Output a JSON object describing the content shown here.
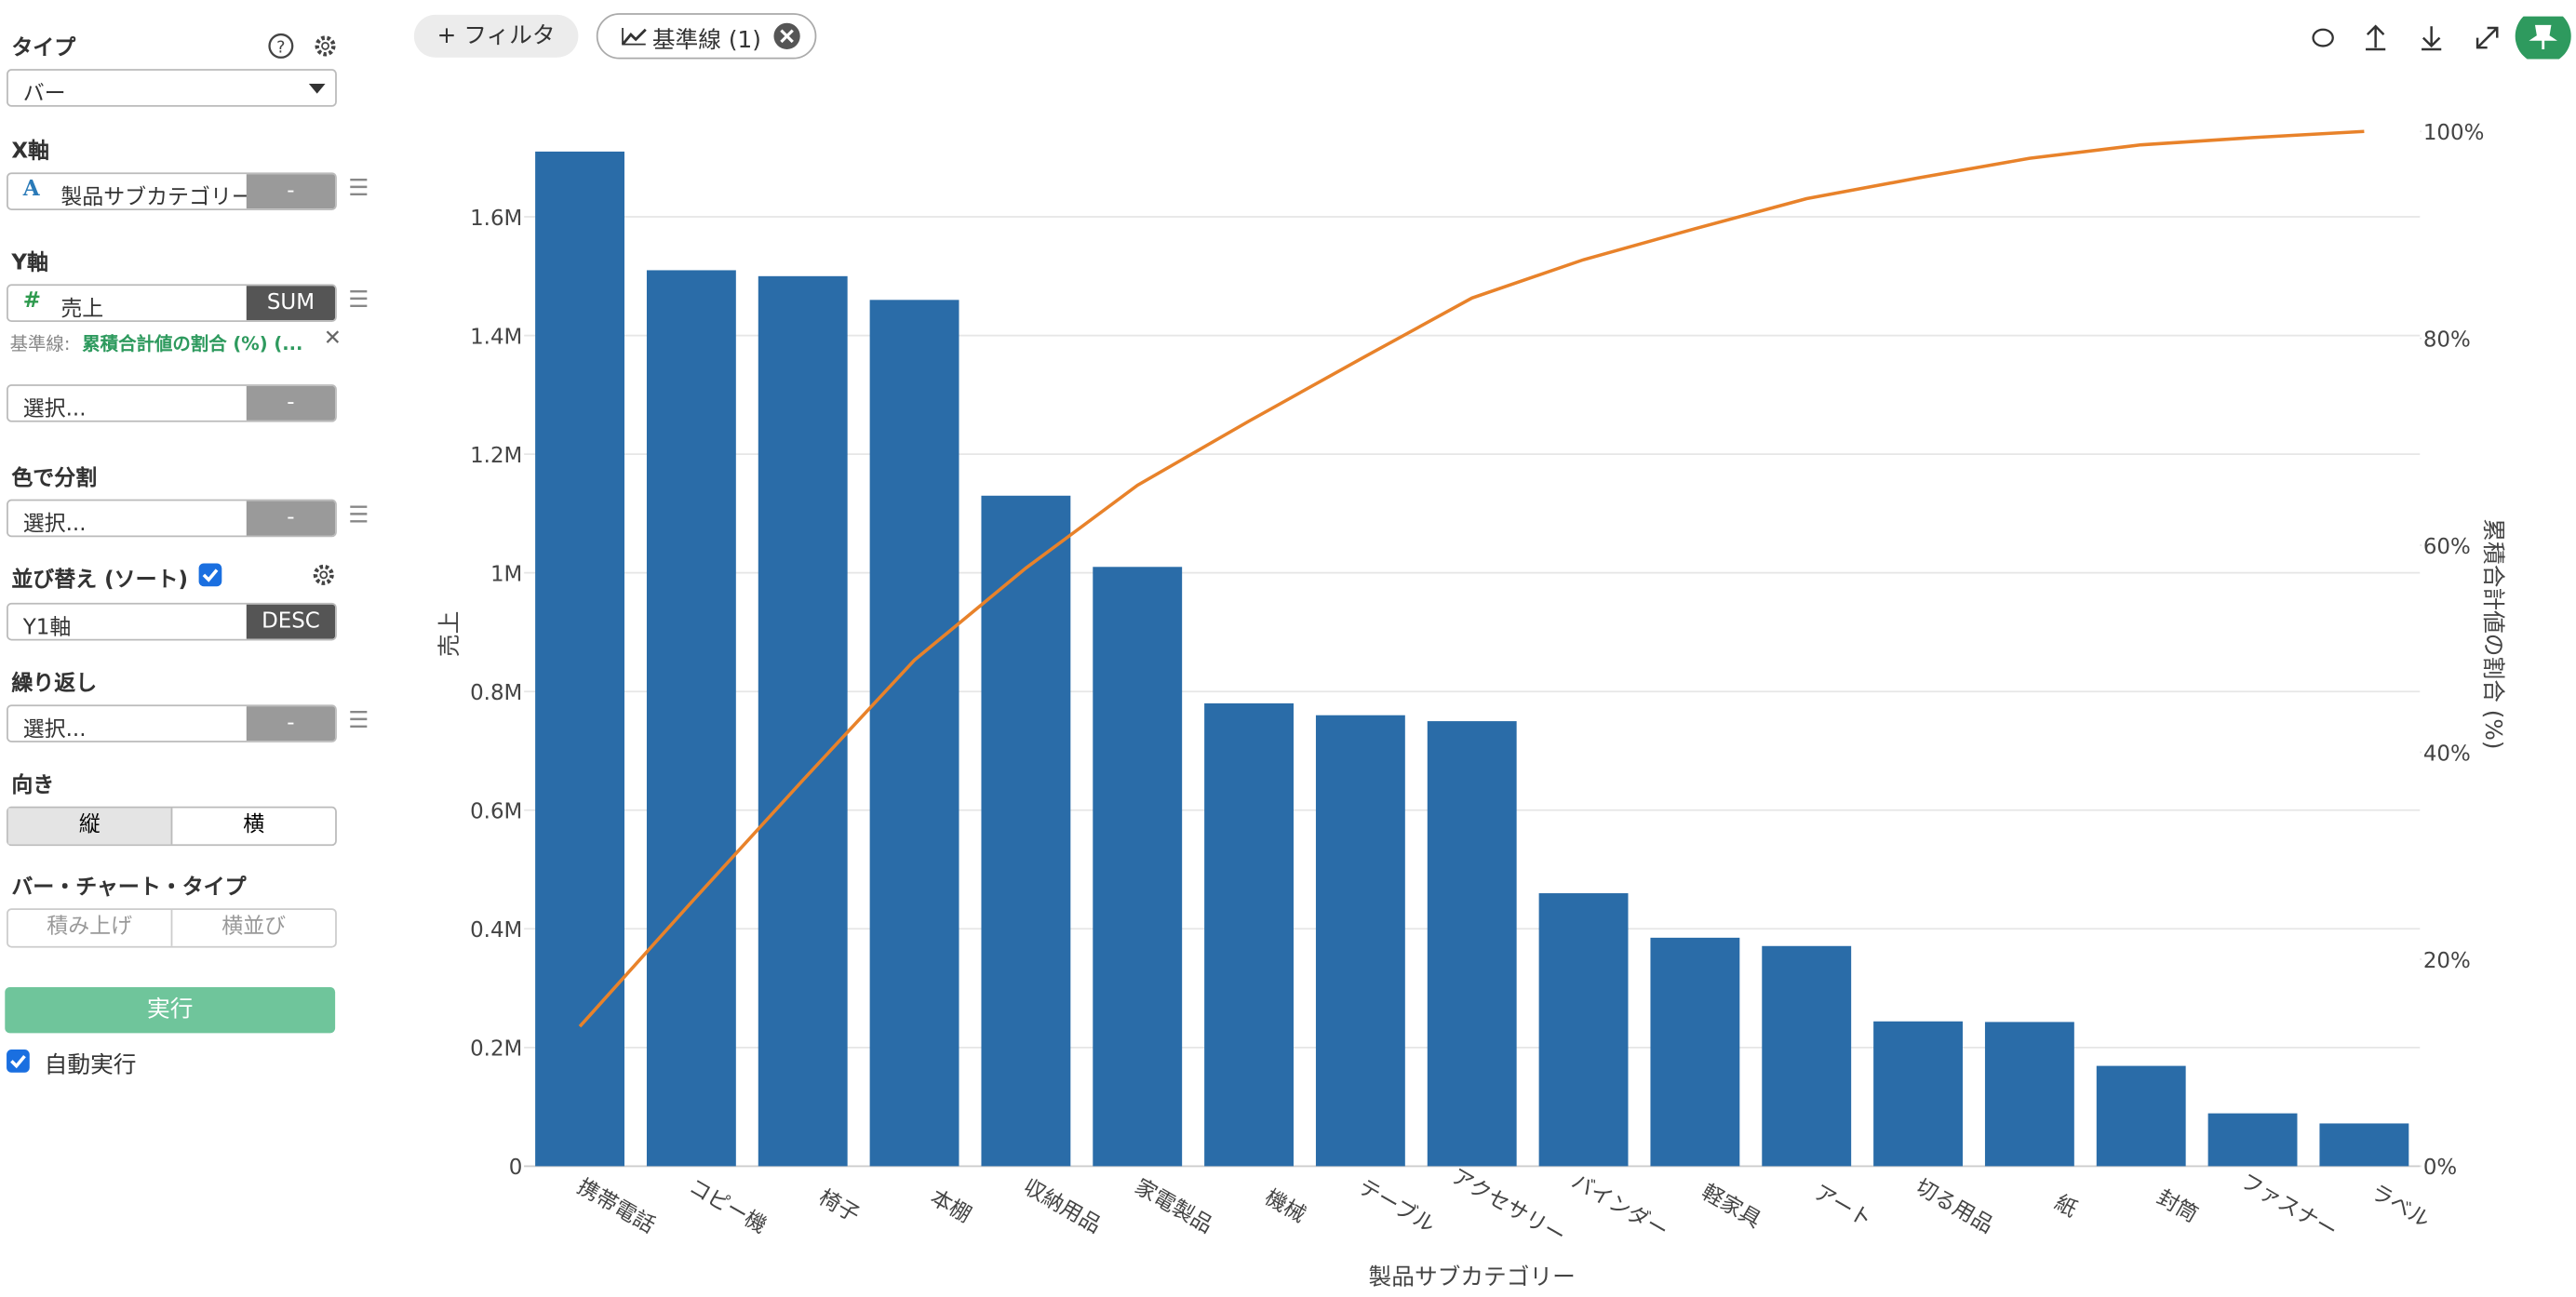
{
  "toolbar": {
    "filter": "+ フィルタ",
    "baseline": "基準線 (1)"
  },
  "sidebar": {
    "type_label": "タイプ",
    "type_value": "バー",
    "x_axis_label": "X軸",
    "x_field": "製品サブカテゴリー",
    "x_agg": "-",
    "y_axis_label": "Y軸",
    "y_field": "売上",
    "y_agg": "SUM",
    "baseline_prefix": "基準線:",
    "baseline_value": "累積合計値の割合 (%) (...",
    "y2_field": "選択...",
    "y2_agg": "-",
    "color_label": "色で分割",
    "color_field": "選択...",
    "color_agg": "-",
    "sort_label": "並び替え (ソート)",
    "sort_field": "Y1軸",
    "sort_order": "DESC",
    "repeat_label": "繰り返し",
    "repeat_field": "選択...",
    "repeat_agg": "-",
    "orientation_label": "向き",
    "orientation_options": [
      "縦",
      "横"
    ],
    "bar_type_label": "バー・チャート・タイプ",
    "bar_type_options": [
      "積み上げ",
      "横並び"
    ],
    "run_button": "実行",
    "auto_run": "自動実行"
  },
  "chart_data": {
    "type": "bar",
    "x_label": "製品サブカテゴリー",
    "y_label": "売上",
    "y2_label": "累積合計値の割合 (%)",
    "categories": [
      "携帯電話",
      "コピー機",
      "椅子",
      "本棚",
      "収納用品",
      "家電製品",
      "機械",
      "テーブル",
      "アクセサリー",
      "バインダー",
      "軽家具",
      "アート",
      "切る用品",
      "紙",
      "封筒",
      "ファスナー",
      "ラベル"
    ],
    "series": [
      {
        "type": "bar",
        "color": "#2a6ca8",
        "values": [
          1710000,
          1510000,
          1500000,
          1460000,
          1130000,
          1010000,
          780000,
          760000,
          750000,
          460000,
          385000,
          371000,
          244000,
          243000,
          169000,
          89000,
          72000
        ]
      },
      {
        "type": "line",
        "axis": "y2",
        "color": "#e8822a",
        "values": [
          13.5,
          25.5,
          37.3,
          48.9,
          57.8,
          65.8,
          72.0,
          78.0,
          83.9,
          87.6,
          90.6,
          93.5,
          95.5,
          97.4,
          98.7,
          99.4,
          100
        ]
      }
    ],
    "ylim": [
      0,
      1744000
    ],
    "yticks": [
      0,
      {
        "value": 200000,
        "label": "0.2M"
      },
      {
        "value": 400000,
        "label": "0.4M"
      },
      {
        "value": 600000,
        "label": "0.6M"
      },
      {
        "value": 800000,
        "label": "0.8M"
      },
      {
        "value": 1000000,
        "label": "1M"
      },
      {
        "value": 1200000,
        "label": "1.2M"
      },
      {
        "value": 1400000,
        "label": "1.4M"
      },
      {
        "value": 1600000,
        "label": "1.6M"
      }
    ],
    "y2lim": [
      0,
      100
    ],
    "y2ticks": [
      {
        "value": 0,
        "label": "0%"
      },
      {
        "value": 20,
        "label": "20%"
      },
      {
        "value": 40,
        "label": "40%"
      },
      {
        "value": 60,
        "label": "60%"
      },
      {
        "value": 80,
        "label": "80%"
      },
      {
        "value": 100,
        "label": "100%"
      }
    ],
    "grid": true
  }
}
